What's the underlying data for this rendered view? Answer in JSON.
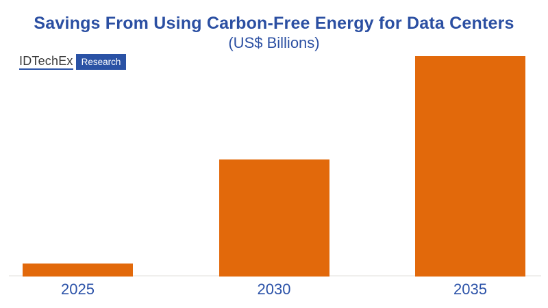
{
  "header": {
    "title": "Savings From Using Carbon-Free Energy for Data Centers",
    "subtitle": "(US$ Billions)",
    "title_color": "#2b4fa2"
  },
  "logo": {
    "brand": "IDTechEx",
    "badge": "Research",
    "brand_color": "#3b3b3b",
    "underline_color": "#2a52a5",
    "badge_bg": "#2a52a5",
    "badge_text_color": "#ffffff"
  },
  "chart_data": {
    "type": "bar",
    "title": "Savings From Using Carbon-Free Energy for Data Centers",
    "subtitle": "(US$ Billions)",
    "units": "US$ Billions",
    "categories": [
      "2025",
      "2030",
      "2035"
    ],
    "values": [
      6,
      53,
      100
    ],
    "value_scale": "relative percent of tallest bar; no y-axis, gridlines or data labels are shown in the chart",
    "ylim": [
      0,
      100
    ],
    "grid": false,
    "legend": false,
    "bar_color": "#e2690b",
    "axis_line_color": "#f0efed",
    "tick_label_color": "#2b52a8"
  }
}
